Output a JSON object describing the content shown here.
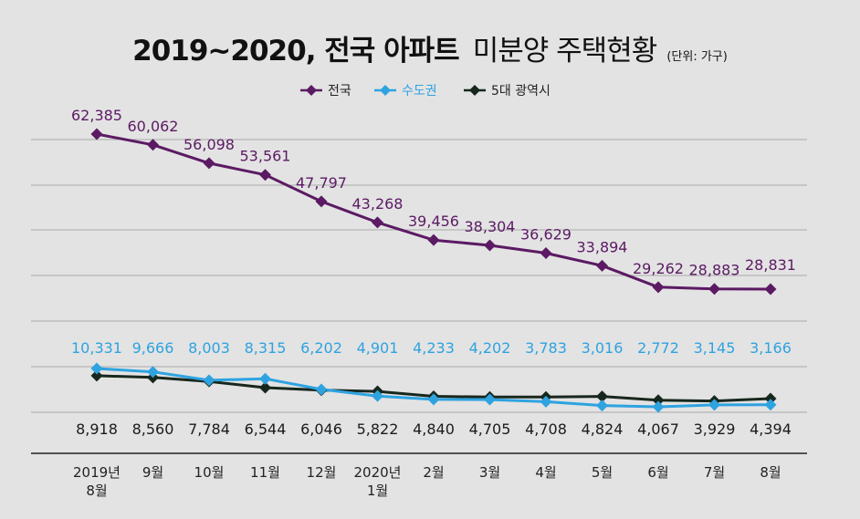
{
  "title": {
    "main": "2019~2020, 전국 아파트",
    "rest": "미분양 주택현황",
    "unit": "(단위: 가구)"
  },
  "colors": {
    "background": "#e3e3e3",
    "grid": "#a9a9a9",
    "axis": "#222222",
    "national": "#5b1a63",
    "capital": "#2ea3e0",
    "metro": "#17271d"
  },
  "chart_data": {
    "type": "line",
    "categories": [
      "2019년\n8월",
      "9월",
      "10월",
      "11월",
      "12월",
      "2020년\n1월",
      "2월",
      "3월",
      "4월",
      "5월",
      "6월",
      "7월",
      "8월"
    ],
    "series": [
      {
        "name": "전국",
        "color": "#5b1a63",
        "values": [
          62385,
          60062,
          56098,
          53561,
          47797,
          43268,
          39456,
          38304,
          36629,
          33894,
          29262,
          28883,
          28831
        ],
        "labels": [
          "62,385",
          "60,062",
          "56,098",
          "53,561",
          "47,797",
          "43,268",
          "39,456",
          "38,304",
          "36,629",
          "33,894",
          "29,262",
          "28,883",
          "28,831"
        ]
      },
      {
        "name": "수도권",
        "color": "#2ea3e0",
        "values": [
          10331,
          9666,
          8003,
          8315,
          6202,
          4901,
          4233,
          4202,
          3783,
          3016,
          2772,
          3145,
          3166
        ],
        "labels": [
          "10,331",
          "9,666",
          "8,003",
          "8,315",
          "6,202",
          "4,901",
          "4,233",
          "4,202",
          "3,783",
          "3,016",
          "2,772",
          "3,145",
          "3,166"
        ]
      },
      {
        "name": "5대 광역시",
        "color": "#17271d",
        "values": [
          8918,
          8560,
          7784,
          6544,
          6046,
          5822,
          4840,
          4705,
          4708,
          4824,
          4067,
          3929,
          4394
        ],
        "labels": [
          "8,918",
          "8,560",
          "7,784",
          "6,544",
          "6,046",
          "5,822",
          "4,840",
          "4,705",
          "4,708",
          "4,824",
          "4,067",
          "3,929",
          "4,394"
        ]
      }
    ],
    "grid": true,
    "legend": "top-center"
  }
}
